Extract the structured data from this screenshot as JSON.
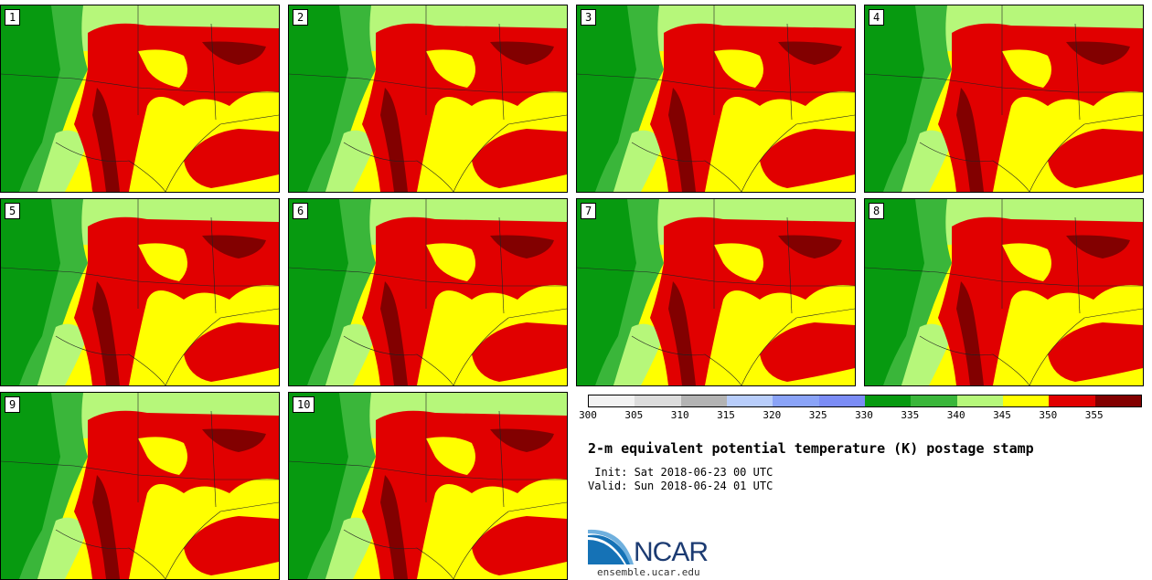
{
  "panels": [
    {
      "label": "1"
    },
    {
      "label": "2"
    },
    {
      "label": "3"
    },
    {
      "label": "4"
    },
    {
      "label": "5"
    },
    {
      "label": "6"
    },
    {
      "label": "7"
    },
    {
      "label": "8"
    },
    {
      "label": "9"
    },
    {
      "label": "10"
    }
  ],
  "legend": {
    "colors": [
      "#f2f2f2",
      "#dcdcdc",
      "#b3b3b3",
      "#b8cdfa",
      "#8aa3f7",
      "#7b8cf5",
      "#079a10",
      "#3ab63a",
      "#b6f77a",
      "#ffff00",
      "#e10000",
      "#820000"
    ],
    "ticks": [
      "300",
      "305",
      "310",
      "315",
      "320",
      "325",
      "330",
      "335",
      "340",
      "345",
      "350",
      "355"
    ]
  },
  "title": "2-m equivalent potential temperature (K) postage stamp",
  "init_text": " Init: Sat 2018-06-23 00 UTC",
  "valid_text": "Valid: Sun 2018-06-24 01 UTC",
  "logo_text": "NCAR",
  "url": "ensemble.ucar.edu"
}
